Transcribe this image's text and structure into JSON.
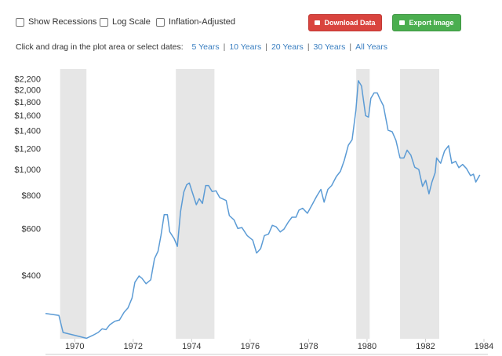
{
  "controls": {
    "checkboxes": [
      "Show Recessions",
      "Log Scale",
      "Inflation-Adjusted"
    ],
    "download_button": "Download Data",
    "export_button": "Export Image",
    "date_prompt": "Click and drag in the plot area or select dates:",
    "date_links": [
      "5 Years",
      "10 Years",
      "20 Years",
      "30 Years",
      "All Years"
    ],
    "link_separator": "|"
  },
  "chart_data": {
    "type": "line",
    "color": "#5b9bd5",
    "log_scale": true,
    "grid": false,
    "recessions": [
      [
        1969.5,
        1970.4
      ],
      [
        1973.46,
        1974.78
      ],
      [
        1979.63,
        1980.09
      ],
      [
        1981.13,
        1982.47
      ]
    ],
    "xlim": [
      1969,
      1984
    ],
    "xticks": [
      1970,
      1972,
      1974,
      1976,
      1978,
      1980,
      1982,
      1984
    ],
    "ylim": [
      232,
      2410
    ],
    "yticks": [
      {
        "value": 400,
        "label": "$400"
      },
      {
        "value": 600,
        "label": "$600"
      },
      {
        "value": 800,
        "label": "$800"
      },
      {
        "value": 1000,
        "label": "$1,000"
      },
      {
        "value": 1200,
        "label": "$1,200"
      },
      {
        "value": 1400,
        "label": "$1,400"
      },
      {
        "value": 1600,
        "label": "$1,600"
      },
      {
        "value": 1800,
        "label": "$1,800"
      },
      {
        "value": 2000,
        "label": "$2,000"
      },
      {
        "value": 2200,
        "label": "$2,200"
      }
    ],
    "x": [
      1969.0,
      1969.46,
      1969.6,
      1970.0,
      1970.4,
      1970.62,
      1970.8,
      1970.94,
      1971.07,
      1971.2,
      1971.37,
      1971.53,
      1971.69,
      1971.82,
      1971.96,
      1972.06,
      1972.2,
      1972.3,
      1972.44,
      1972.6,
      1972.73,
      1972.85,
      1972.95,
      1973.06,
      1973.17,
      1973.25,
      1973.4,
      1973.51,
      1973.62,
      1973.73,
      1973.83,
      1973.92,
      1974.02,
      1974.16,
      1974.26,
      1974.37,
      1974.48,
      1974.58,
      1974.7,
      1974.83,
      1974.96,
      1975.18,
      1975.29,
      1975.45,
      1975.58,
      1975.72,
      1975.9,
      1976.09,
      1976.22,
      1976.36,
      1976.49,
      1976.63,
      1976.76,
      1976.89,
      1977.03,
      1977.16,
      1977.3,
      1977.43,
      1977.57,
      1977.67,
      1977.8,
      1977.96,
      1978.12,
      1978.28,
      1978.42,
      1978.53,
      1978.66,
      1978.79,
      1978.95,
      1979.09,
      1979.22,
      1979.36,
      1979.49,
      1979.62,
      1979.7,
      1979.81,
      1979.95,
      1980.05,
      1980.13,
      1980.24,
      1980.35,
      1980.43,
      1980.56,
      1980.72,
      1980.86,
      1980.99,
      1981.13,
      1981.26,
      1981.37,
      1981.5,
      1981.63,
      1981.77,
      1981.9,
      1982.01,
      1982.12,
      1982.22,
      1982.33,
      1982.38,
      1982.52,
      1982.65,
      1982.79,
      1982.9,
      1983.03,
      1983.14,
      1983.27,
      1983.4,
      1983.54,
      1983.64,
      1983.72,
      1983.86
    ],
    "values": [
      289,
      284,
      245,
      239,
      233,
      239,
      245,
      253,
      251,
      262,
      270,
      273,
      292,
      303,
      330,
      379,
      400,
      392,
      374,
      387,
      465,
      496,
      568,
      681,
      681,
      587,
      553,
      517,
      700,
      828,
      883,
      896,
      828,
      742,
      782,
      751,
      877,
      877,
      832,
      838,
      790,
      770,
      675,
      651,
      604,
      609,
      568,
      546,
      488,
      507,
      568,
      575,
      621,
      613,
      586,
      601,
      637,
      666,
      666,
      708,
      720,
      689,
      742,
      800,
      848,
      759,
      848,
      877,
      948,
      992,
      1091,
      1244,
      1305,
      1691,
      2177,
      2080,
      1608,
      1588,
      1868,
      1958,
      1958,
      1868,
      1752,
      1417,
      1398,
      1297,
      1113,
      1113,
      1192,
      1142,
      1028,
      1008,
      870,
      918,
      816,
      904,
      980,
      1113,
      1064,
      1183,
      1239,
      1064,
      1081,
      1024,
      1053,
      1017,
      955,
      968,
      904,
      962
    ]
  }
}
